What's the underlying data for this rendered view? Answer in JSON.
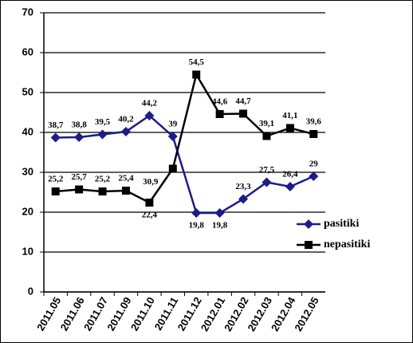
{
  "chart_data": {
    "type": "line",
    "categories": [
      "2011.05",
      "2011.06",
      "2011.07",
      "2011.09",
      "2011.10",
      "2011.11",
      "2011.12",
      "2012.01",
      "2012.02",
      "2012.03",
      "2012.04",
      "2012.05"
    ],
    "series": [
      {
        "name": "pasitiki",
        "color": "#1c1c8a",
        "marker": "diamond",
        "values": [
          38.7,
          38.8,
          39.5,
          40.2,
          44.2,
          39,
          19.8,
          19.8,
          23.3,
          27.5,
          26.4,
          29
        ],
        "value_labels": [
          "38,7",
          "38,8",
          "39,5",
          "40,2",
          "44,2",
          "39",
          "19,8",
          "19,8",
          "23,3",
          "27,5",
          "26,4",
          "29"
        ]
      },
      {
        "name": "nepasitiki",
        "color": "#000000",
        "marker": "square",
        "values": [
          25.2,
          25.7,
          25.2,
          25.4,
          22.4,
          30.9,
          54.5,
          44.6,
          44.7,
          39.1,
          41.1,
          39.6
        ],
        "value_labels": [
          "25,2",
          "25,7",
          "25,2",
          "25,4",
          "22,4",
          "30,9",
          "54,5",
          "44,6",
          "44,7",
          "39,1",
          "41,1",
          "39,6"
        ]
      }
    ],
    "ylim": [
      0,
      70
    ],
    "yticks": [
      0,
      10,
      20,
      30,
      40,
      50,
      60,
      70
    ],
    "grid": true,
    "legend": "right"
  }
}
